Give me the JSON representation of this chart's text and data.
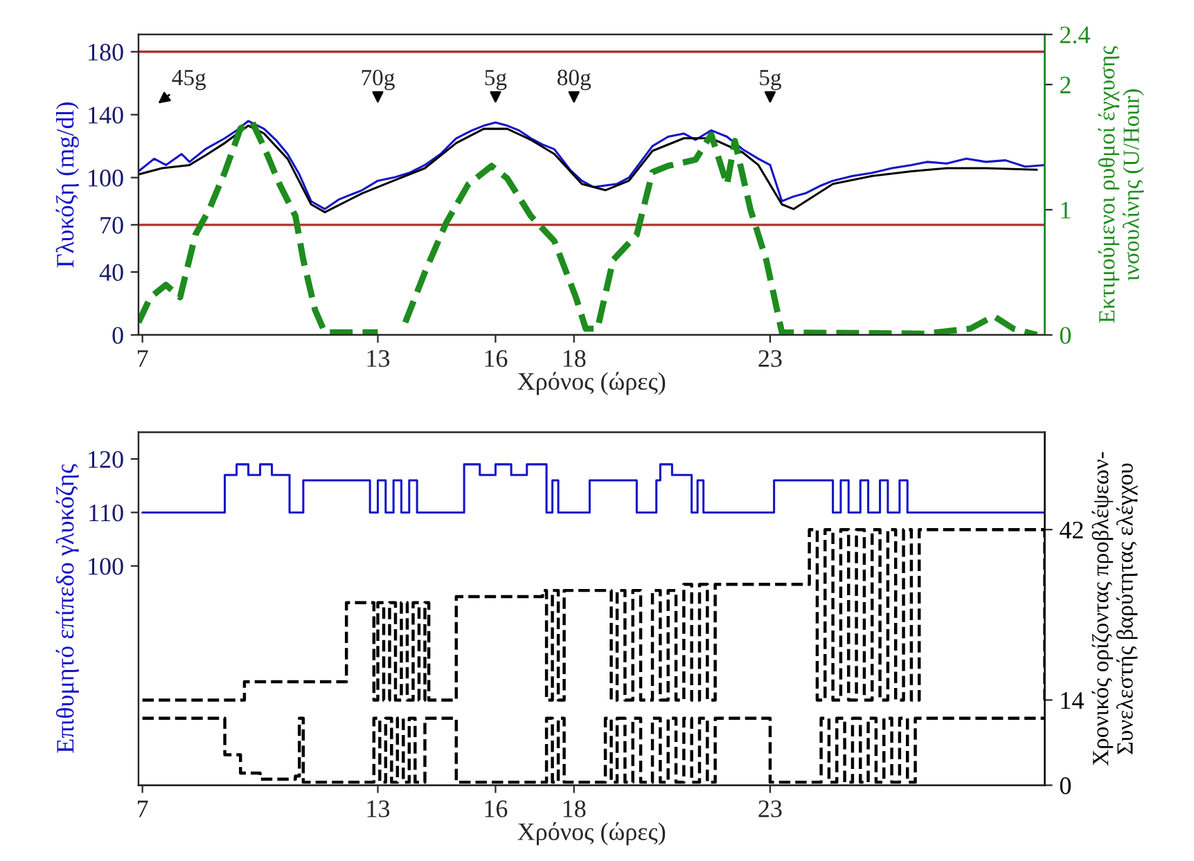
{
  "chart_data": [
    {
      "type": "line",
      "xlabel": "Χρόνος (ώρες)",
      "ylabel": "Γλυκόζη (mg/dl)",
      "y2label": "Εκτιμούμενοι ρυθμοί έγχυσης\nινσουλίνης (U/Hour)",
      "xlim": [
        6.9,
        30
      ],
      "xticks": [
        7,
        13,
        16,
        18,
        23
      ],
      "ylim": [
        0,
        191
      ],
      "yticks": [
        0,
        40,
        70,
        100,
        140,
        180
      ],
      "y2lim": [
        0,
        2.4
      ],
      "y2ticks": [
        0,
        1,
        2,
        2.4
      ],
      "grid": false,
      "legend": false,
      "ref_lines": [
        {
          "axis": "y",
          "value": 70,
          "color": "#b03030"
        },
        {
          "axis": "y",
          "value": 180,
          "color": "#b03030"
        }
      ],
      "annotations": [
        "45g",
        "70g",
        "5g",
        "80g",
        "5g"
      ],
      "series": [
        {
          "color": "#1414c8",
          "line_style": "solid",
          "x": [
            6.9,
            7.3,
            7.6,
            8.0,
            8.2,
            8.6,
            9.1,
            9.4,
            9.7,
            10.1,
            10.4,
            10.7,
            11.0,
            11.3,
            11.65,
            12.0,
            12.6,
            13.0,
            13.4,
            13.8,
            14.2,
            14.6,
            15.0,
            15.4,
            15.7,
            16.0,
            16.3,
            16.6,
            16.9,
            17.2,
            17.5,
            17.9,
            18.2,
            18.5,
            18.8,
            19.1,
            19.4,
            19.7,
            20.0,
            20.4,
            20.8,
            21.1,
            21.5,
            21.9,
            22.3,
            22.7,
            23.0,
            23.3,
            23.6,
            23.9,
            24.3,
            24.6,
            25.1,
            25.6,
            26.1,
            26.6,
            27.0,
            27.5,
            28.0,
            28.5,
            29.0,
            29.5,
            30.0
          ],
          "values": [
            104,
            112,
            108,
            115,
            110,
            118,
            125,
            130,
            136,
            131,
            124,
            115,
            102,
            85,
            80,
            86,
            92,
            98,
            100,
            103,
            108,
            115,
            125,
            130,
            133,
            135,
            133,
            130,
            125,
            121,
            118,
            105,
            98,
            94,
            95,
            96,
            100,
            110,
            120,
            126,
            128,
            124,
            130,
            126,
            118,
            112,
            108,
            85,
            88,
            90,
            95,
            98,
            101,
            103,
            106,
            108,
            110,
            109,
            112,
            110,
            111,
            107,
            108
          ]
        },
        {
          "color": "#000000",
          "line_style": "solid",
          "x": [
            6.9,
            7.5,
            8.2,
            8.6,
            9.1,
            9.7,
            10.1,
            10.7,
            11.3,
            11.65,
            12.6,
            13.4,
            14.2,
            15.0,
            15.7,
            16.3,
            16.9,
            17.5,
            18.2,
            18.8,
            19.4,
            20.0,
            20.8,
            21.5,
            22.3,
            22.7,
            23.3,
            23.6,
            24.6,
            25.6,
            26.6,
            27.5,
            28.5,
            29.8
          ],
          "values": [
            102,
            106,
            108,
            114,
            122,
            133,
            128,
            112,
            83,
            78,
            90,
            98,
            106,
            122,
            131,
            131,
            124,
            115,
            96,
            92,
            98,
            117,
            125,
            125,
            116,
            108,
            83,
            80,
            96,
            101,
            104,
            106,
            106,
            105
          ]
        },
        {
          "axis": "y2",
          "color": "#1e8c1e",
          "line_style": "dashed",
          "x": [
            6.9,
            7.2,
            7.6,
            7.96,
            8.35,
            8.7,
            9.1,
            9.5,
            9.8,
            10.1,
            10.5,
            10.9,
            11.1,
            11.4,
            11.65,
            13.0,
            13.4,
            13.7,
            14.2,
            14.75,
            15.3,
            15.9,
            16.3,
            16.9,
            17.5,
            18.05,
            18.3,
            18.6,
            19.0,
            19.6,
            20.0,
            20.4,
            21.1,
            21.5,
            21.9,
            22.1,
            22.5,
            22.9,
            23.3,
            26.95,
            28.1,
            28.7,
            29.2,
            29.8
          ],
          "values": [
            0.1,
            0.3,
            0.4,
            0.3,
            0.8,
            1.0,
            1.3,
            1.65,
            1.7,
            1.5,
            1.2,
            0.95,
            0.6,
            0.2,
            0.02,
            0.02,
            null,
            0.1,
            0.5,
            0.9,
            1.2,
            1.35,
            1.25,
            0.95,
            0.75,
            0.3,
            0.05,
            0.05,
            0.6,
            0.8,
            1.3,
            1.35,
            1.4,
            1.6,
            1.2,
            1.55,
            1.0,
            0.6,
            0.02,
            0.01,
            0.05,
            0.15,
            0.05,
            0.0
          ]
        }
      ]
    },
    {
      "type": "step",
      "xlabel": "Χρόνος (ώρες)",
      "ylabel": "Επιθυμητό επίπεδο γλυκόζης",
      "y2label": "Χρονικός ορίζοντας προβλέψεων-\nΣυνελεστής βαρύτητας ελέγχου",
      "xlim": [
        6.9,
        30
      ],
      "xticks": [
        7,
        13,
        16,
        18,
        23
      ],
      "ylim": [
        59,
        125
      ],
      "yticks": [
        100,
        110,
        120
      ],
      "y2lim": [
        0,
        58
      ],
      "y2ticks": [
        0,
        14,
        42
      ],
      "grid": false,
      "legend": false,
      "series": [
        {
          "color": "#1414c8",
          "line_style": "solid",
          "x": [
            7,
            9.1,
            9.4,
            9.7,
            10.0,
            10.3,
            10.75,
            11.1,
            12.8,
            13.0,
            13.2,
            13.4,
            13.6,
            13.8,
            14.0,
            15.2,
            15.6,
            16.0,
            16.4,
            16.8,
            17.3,
            17.45,
            17.6,
            18.4,
            19.6,
            20.1,
            20.2,
            20.5,
            21.0,
            21.15,
            21.3,
            21.5,
            23.1,
            24.6,
            24.8,
            25.0,
            25.3,
            25.5,
            25.8,
            26.0,
            26.3,
            26.5,
            26.8,
            30
          ],
          "values": [
            110,
            117,
            119,
            117,
            119,
            117,
            110,
            116,
            110,
            116,
            110,
            116,
            110,
            116,
            110,
            119,
            117,
            119,
            117,
            119,
            110,
            116,
            110,
            116,
            110,
            116,
            119,
            117,
            110,
            116,
            110,
            110,
            116,
            110,
            116,
            110,
            116,
            110,
            116,
            110,
            116,
            110,
            110,
            110
          ]
        },
        {
          "axis": "y2",
          "color": "#000000",
          "line_style": "dashed",
          "x": [
            7,
            9.2,
            9.6,
            11.0,
            12.2,
            12.8,
            12.9,
            13.0,
            13.15,
            13.3,
            13.45,
            13.6,
            13.75,
            13.9,
            14.05,
            14.2,
            14.3,
            14.9,
            15.0,
            17.2,
            17.3,
            17.45,
            17.6,
            17.75,
            18.8,
            18.95,
            19.1,
            19.3,
            19.5,
            19.7,
            20.0,
            20.2,
            20.4,
            20.6,
            20.8,
            21.0,
            21.2,
            21.4,
            21.6,
            22.0,
            22.9,
            24.0,
            24.2,
            24.4,
            24.6,
            24.8,
            25.0,
            25.2,
            25.4,
            25.6,
            25.8,
            26.0,
            26.2,
            26.4,
            26.6,
            26.8,
            30
          ],
          "values": [
            14,
            14,
            17,
            17,
            30,
            30,
            14,
            30,
            14,
            30,
            14,
            30,
            14,
            30,
            14,
            30,
            14,
            14,
            31,
            32,
            14,
            32,
            14,
            32,
            32,
            14,
            32,
            14,
            32,
            14,
            32,
            14,
            32,
            14,
            33,
            14,
            33,
            14,
            33,
            33,
            33,
            42,
            14,
            42,
            14,
            42,
            14,
            42,
            14,
            42,
            14,
            42,
            14,
            42,
            14,
            42,
            14
          ]
        },
        {
          "axis": "y2",
          "color": "#000000",
          "line_style": "dashed",
          "x": [
            7,
            8.9,
            9.1,
            9.5,
            10.0,
            10.9,
            11.0,
            11.1,
            12.8,
            12.9,
            13.05,
            13.2,
            13.35,
            13.5,
            13.65,
            13.8,
            13.95,
            14.2,
            14.9,
            15.0,
            17.2,
            17.3,
            17.45,
            17.6,
            17.75,
            18.8,
            18.95,
            19.1,
            19.3,
            19.5,
            19.7,
            20.0,
            20.2,
            20.4,
            20.6,
            20.8,
            21.0,
            21.2,
            21.4,
            21.6,
            22.0,
            22.9,
            23.0,
            24.1,
            24.3,
            24.5,
            24.7,
            24.9,
            25.1,
            25.3,
            25.5,
            25.7,
            25.9,
            26.1,
            26.3,
            26.5,
            26.7,
            26.9,
            30
          ],
          "values": [
            11,
            11,
            5,
            2,
            1,
            1.5,
            11,
            0.5,
            0.5,
            11,
            0.5,
            11,
            0.5,
            11,
            0.5,
            11,
            0.5,
            11,
            11,
            0.5,
            0.5,
            11,
            0.5,
            11,
            0.5,
            11,
            0.5,
            11,
            0.5,
            11,
            0.5,
            11,
            0.5,
            11,
            0.5,
            11,
            0.5,
            11,
            0.5,
            11,
            11,
            11,
            0.5,
            0.5,
            11,
            0.5,
            11,
            0.5,
            11,
            0.5,
            11,
            0.5,
            11,
            0.5,
            11,
            0.5,
            11,
            11,
            11
          ]
        }
      ]
    }
  ]
}
